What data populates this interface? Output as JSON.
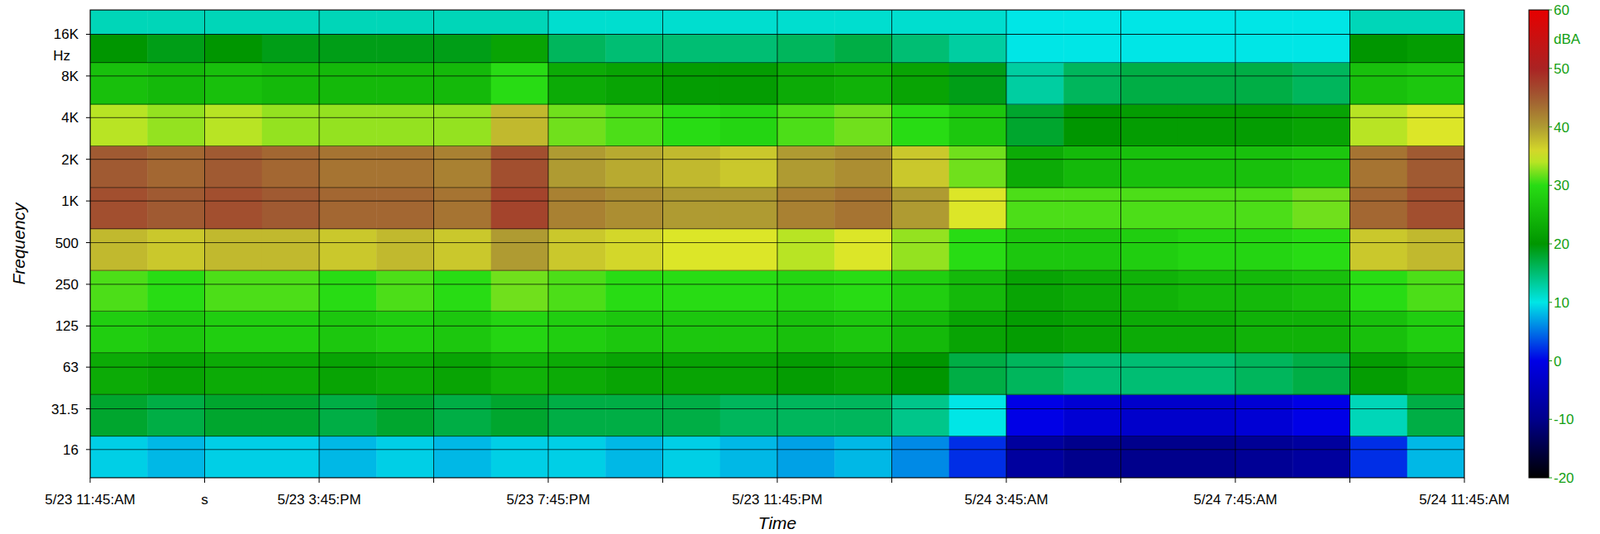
{
  "chart_data": {
    "type": "heatmap",
    "x_label": "Time",
    "y_label": "Frequency",
    "y_unit": "Hz",
    "x_edges": [
      0,
      1,
      2,
      3,
      4,
      5,
      6,
      7,
      8,
      9,
      10,
      11,
      12,
      13,
      14,
      15,
      16,
      17,
      18,
      19,
      20,
      21,
      22,
      23,
      24
    ],
    "y_edges": [
      10,
      20,
      40,
      80,
      160,
      315,
      630,
      1250,
      2500,
      5000,
      10000,
      16000,
      24000
    ],
    "values": [
      [
        9,
        8,
        9,
        9,
        8,
        9,
        8,
        9,
        9,
        8,
        9,
        8,
        7,
        8,
        6,
        2,
        -8,
        -10,
        -10,
        -10,
        -9,
        -8,
        2,
        8
      ],
      [
        18,
        17,
        18,
        18,
        17,
        18,
        17,
        18,
        17,
        17,
        17,
        16,
        16,
        16,
        14,
        10,
        0,
        -2,
        -3,
        -3,
        -2,
        0,
        12,
        17
      ],
      [
        23,
        22,
        23,
        23,
        22,
        23,
        22,
        24,
        23,
        22,
        22,
        22,
        21,
        22,
        20,
        17,
        16,
        15,
        15,
        15,
        16,
        17,
        21,
        23
      ],
      [
        28,
        27,
        28,
        28,
        27,
        28,
        27,
        29,
        28,
        27,
        27,
        27,
        26,
        27,
        25,
        22,
        21,
        22,
        23,
        23,
        24,
        24,
        26,
        28
      ],
      [
        31,
        30,
        31,
        31,
        30,
        31,
        30,
        32,
        31,
        30,
        30,
        30,
        29,
        30,
        28,
        25,
        22,
        23,
        24,
        25,
        25,
        26,
        30,
        31
      ],
      [
        38,
        37,
        38,
        38,
        37,
        38,
        37,
        40,
        37,
        36,
        35,
        35,
        34,
        35,
        33,
        30,
        27,
        27,
        28,
        29,
        29,
        30,
        37,
        38
      ],
      [
        46,
        45,
        46,
        45,
        44,
        44,
        43,
        47,
        42,
        41,
        40,
        40,
        42,
        43,
        40,
        35,
        31,
        31,
        31,
        31,
        31,
        32,
        44,
        46
      ],
      [
        45,
        44,
        45,
        44,
        43,
        43,
        42,
        46,
        40,
        39,
        38,
        37,
        40,
        41,
        37,
        32,
        23,
        25,
        26,
        26,
        26,
        27,
        43,
        45
      ],
      [
        34,
        33,
        34,
        33,
        33,
        33,
        33,
        38,
        32,
        31,
        30,
        29,
        31,
        32,
        30,
        27,
        18,
        20,
        21,
        21,
        21,
        22,
        34,
        35
      ],
      [
        26,
        25,
        26,
        25,
        25,
        25,
        25,
        30,
        23,
        22,
        21,
        21,
        23,
        24,
        22,
        19,
        13,
        16,
        17,
        17,
        17,
        16,
        26,
        27
      ],
      [
        20,
        19,
        20,
        19,
        19,
        19,
        19,
        22,
        16,
        15,
        15,
        15,
        16,
        17,
        15,
        13,
        10,
        10,
        10,
        10,
        10,
        10,
        20,
        21
      ],
      [
        12,
        12,
        12,
        12,
        12,
        12,
        12,
        12,
        11,
        11,
        11,
        11,
        11,
        11,
        11,
        11,
        10,
        10,
        10,
        10,
        10,
        10,
        12,
        12
      ]
    ],
    "xlim": [
      0,
      24
    ],
    "ylim": [
      10,
      24000
    ],
    "log": "y",
    "grid": true,
    "xticks": [
      {
        "value": 0,
        "label": "5/23 11:45:AM"
      },
      {
        "value": 2,
        "label": "s"
      },
      {
        "value": 4,
        "label": "5/23 3:45:PM"
      },
      {
        "value": 6,
        "label": null
      },
      {
        "value": 8,
        "label": "5/23 7:45:PM"
      },
      {
        "value": 10,
        "label": null
      },
      {
        "value": 12,
        "label": "5/23 11:45:PM"
      },
      {
        "value": 14,
        "label": null
      },
      {
        "value": 16,
        "label": "5/24 3:45:AM"
      },
      {
        "value": 18,
        "label": null
      },
      {
        "value": 20,
        "label": "5/24 7:45:AM"
      },
      {
        "value": 22,
        "label": null
      },
      {
        "value": 24,
        "label": "5/24 11:45:AM"
      }
    ],
    "yticks": [
      {
        "value": 16000,
        "label": "16K"
      },
      {
        "value": 8000,
        "label": "8K"
      },
      {
        "value": 4000,
        "label": "4K"
      },
      {
        "value": 2000,
        "label": "2K"
      },
      {
        "value": 1000,
        "label": "1K"
      },
      500,
      250,
      125,
      63,
      31.5,
      16
    ],
    "colorbar": {
      "range": [
        -20,
        60
      ],
      "ticks": [
        60,
        50,
        40,
        30,
        20,
        10,
        0,
        -10,
        -20
      ],
      "label": "dBA"
    }
  }
}
